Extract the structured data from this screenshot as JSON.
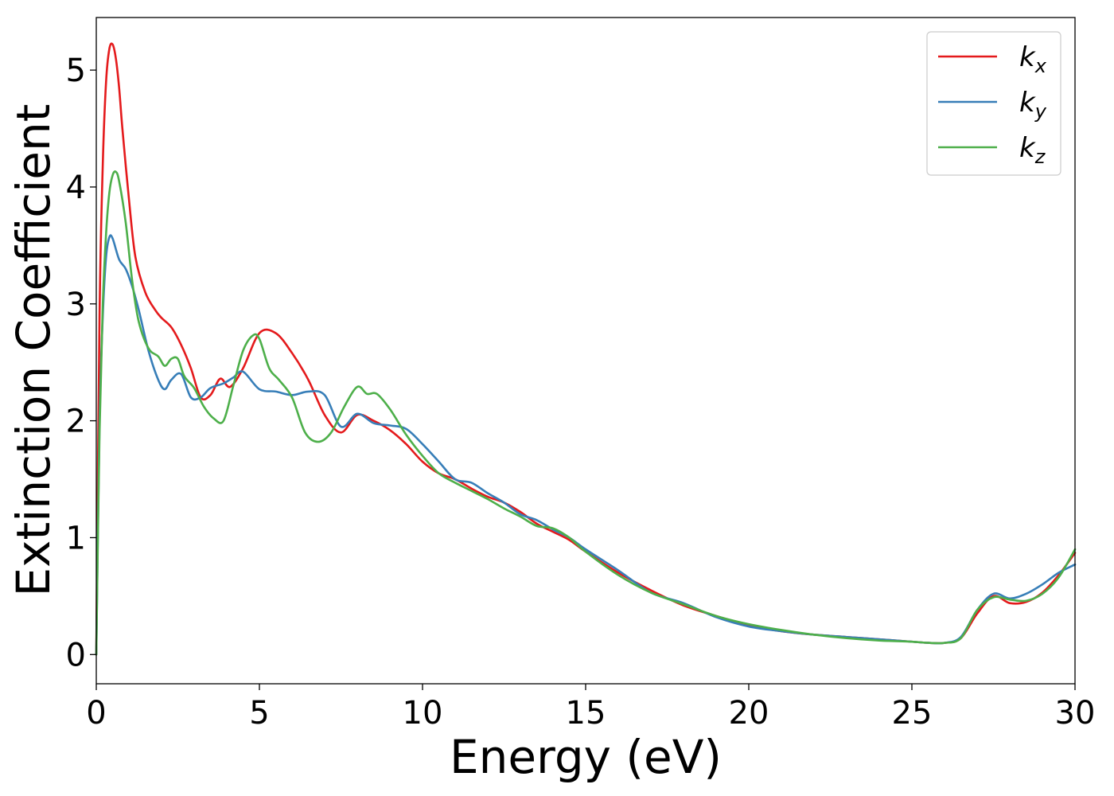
{
  "chart_data": {
    "type": "line",
    "xlabel": "Energy (eV)",
    "ylabel": "Extinction Coefficient",
    "xlim": [
      0,
      30
    ],
    "ylim": [
      -0.25,
      5.45
    ],
    "xticks": [
      0,
      5,
      10,
      15,
      20,
      25,
      30
    ],
    "yticks": [
      0,
      1,
      2,
      3,
      4,
      5
    ],
    "grid": false,
    "legend_position": "top-right",
    "series": [
      {
        "name": "k_x",
        "label_main": "k",
        "label_sub": "x",
        "color": "#e41a1c",
        "x": [
          0,
          0.1,
          0.2,
          0.3,
          0.4,
          0.5,
          0.6,
          0.7,
          0.8,
          1.0,
          1.2,
          1.5,
          1.8,
          2.0,
          2.3,
          2.6,
          2.9,
          3.2,
          3.5,
          3.8,
          4.1,
          4.5,
          5.0,
          5.5,
          6.0,
          6.5,
          7.0,
          7.5,
          8.0,
          8.5,
          9.0,
          9.5,
          10.0,
          10.5,
          11.0,
          11.5,
          12.0,
          12.5,
          13.0,
          13.5,
          14.0,
          14.5,
          15.0,
          16.0,
          17.0,
          18.0,
          19.0,
          20.0,
          21.0,
          22.0,
          23.0,
          24.0,
          25.0,
          25.5,
          26.0,
          26.5,
          27.0,
          27.5,
          28.0,
          28.5,
          29.0,
          29.5,
          30.0
        ],
        "y": [
          0,
          2.9,
          4.2,
          4.9,
          5.18,
          5.22,
          5.1,
          4.85,
          4.5,
          3.9,
          3.4,
          3.1,
          2.95,
          2.88,
          2.8,
          2.65,
          2.45,
          2.2,
          2.22,
          2.36,
          2.29,
          2.45,
          2.75,
          2.75,
          2.58,
          2.35,
          2.05,
          1.9,
          2.05,
          2.0,
          1.92,
          1.8,
          1.65,
          1.55,
          1.5,
          1.42,
          1.35,
          1.3,
          1.22,
          1.12,
          1.05,
          0.98,
          0.88,
          0.7,
          0.55,
          0.42,
          0.33,
          0.25,
          0.2,
          0.17,
          0.15,
          0.13,
          0.11,
          0.1,
          0.1,
          0.14,
          0.35,
          0.5,
          0.44,
          0.45,
          0.53,
          0.68,
          0.87
        ]
      },
      {
        "name": "k_y",
        "label_main": "k",
        "label_sub": "y",
        "color": "#377eb8",
        "x": [
          0,
          0.1,
          0.2,
          0.3,
          0.4,
          0.5,
          0.7,
          0.9,
          1.1,
          1.3,
          1.6,
          1.9,
          2.1,
          2.3,
          2.6,
          2.9,
          3.2,
          3.5,
          3.9,
          4.2,
          4.5,
          5.0,
          5.5,
          6.0,
          6.5,
          7.0,
          7.5,
          8.0,
          8.5,
          9.0,
          9.5,
          10.0,
          10.5,
          11.0,
          11.5,
          12.0,
          12.5,
          13.0,
          13.5,
          14.0,
          14.5,
          15.0,
          16.0,
          17.0,
          18.0,
          19.0,
          20.0,
          21.0,
          22.0,
          23.0,
          24.0,
          25.0,
          25.5,
          26.0,
          26.5,
          27.0,
          27.5,
          28.0,
          28.5,
          29.0,
          29.5,
          30.0
        ],
        "y": [
          0,
          2.0,
          2.9,
          3.4,
          3.57,
          3.56,
          3.38,
          3.3,
          3.15,
          2.95,
          2.6,
          2.35,
          2.27,
          2.35,
          2.4,
          2.2,
          2.2,
          2.28,
          2.32,
          2.37,
          2.42,
          2.27,
          2.25,
          2.22,
          2.25,
          2.22,
          1.95,
          2.06,
          1.98,
          1.96,
          1.93,
          1.8,
          1.65,
          1.5,
          1.47,
          1.38,
          1.3,
          1.2,
          1.15,
          1.07,
          1.0,
          0.9,
          0.72,
          0.53,
          0.44,
          0.32,
          0.24,
          0.2,
          0.17,
          0.15,
          0.13,
          0.11,
          0.1,
          0.1,
          0.15,
          0.38,
          0.52,
          0.48,
          0.52,
          0.6,
          0.7,
          0.77
        ]
      },
      {
        "name": "k_z",
        "label_main": "k",
        "label_sub": "z",
        "color": "#4daf4a",
        "x": [
          0,
          0.1,
          0.2,
          0.3,
          0.4,
          0.5,
          0.6,
          0.7,
          0.9,
          1.1,
          1.3,
          1.6,
          1.9,
          2.1,
          2.3,
          2.5,
          2.7,
          3.0,
          3.3,
          3.6,
          3.9,
          4.2,
          4.5,
          4.8,
          5.0,
          5.3,
          5.6,
          6.0,
          6.4,
          6.8,
          7.2,
          7.6,
          8.0,
          8.3,
          8.6,
          9.0,
          9.5,
          10.0,
          10.5,
          11.0,
          11.5,
          12.0,
          12.5,
          13.0,
          13.5,
          14.0,
          14.5,
          15.0,
          16.0,
          17.0,
          18.0,
          19.0,
          20.0,
          21.0,
          22.0,
          23.0,
          24.0,
          25.0,
          25.5,
          26.0,
          26.5,
          27.0,
          27.5,
          28.0,
          28.5,
          29.0,
          29.5,
          30.0
        ],
        "y": [
          0,
          1.9,
          3.0,
          3.6,
          3.95,
          4.1,
          4.13,
          4.05,
          3.7,
          3.2,
          2.85,
          2.62,
          2.55,
          2.47,
          2.53,
          2.53,
          2.38,
          2.28,
          2.12,
          2.02,
          2.0,
          2.3,
          2.6,
          2.73,
          2.7,
          2.45,
          2.35,
          2.2,
          1.9,
          1.82,
          1.9,
          2.12,
          2.29,
          2.23,
          2.23,
          2.1,
          1.88,
          1.7,
          1.55,
          1.47,
          1.4,
          1.33,
          1.25,
          1.18,
          1.1,
          1.08,
          1.0,
          0.88,
          0.68,
          0.53,
          0.43,
          0.33,
          0.26,
          0.21,
          0.17,
          0.14,
          0.12,
          0.11,
          0.1,
          0.1,
          0.14,
          0.38,
          0.49,
          0.47,
          0.46,
          0.52,
          0.66,
          0.9
        ]
      }
    ]
  }
}
